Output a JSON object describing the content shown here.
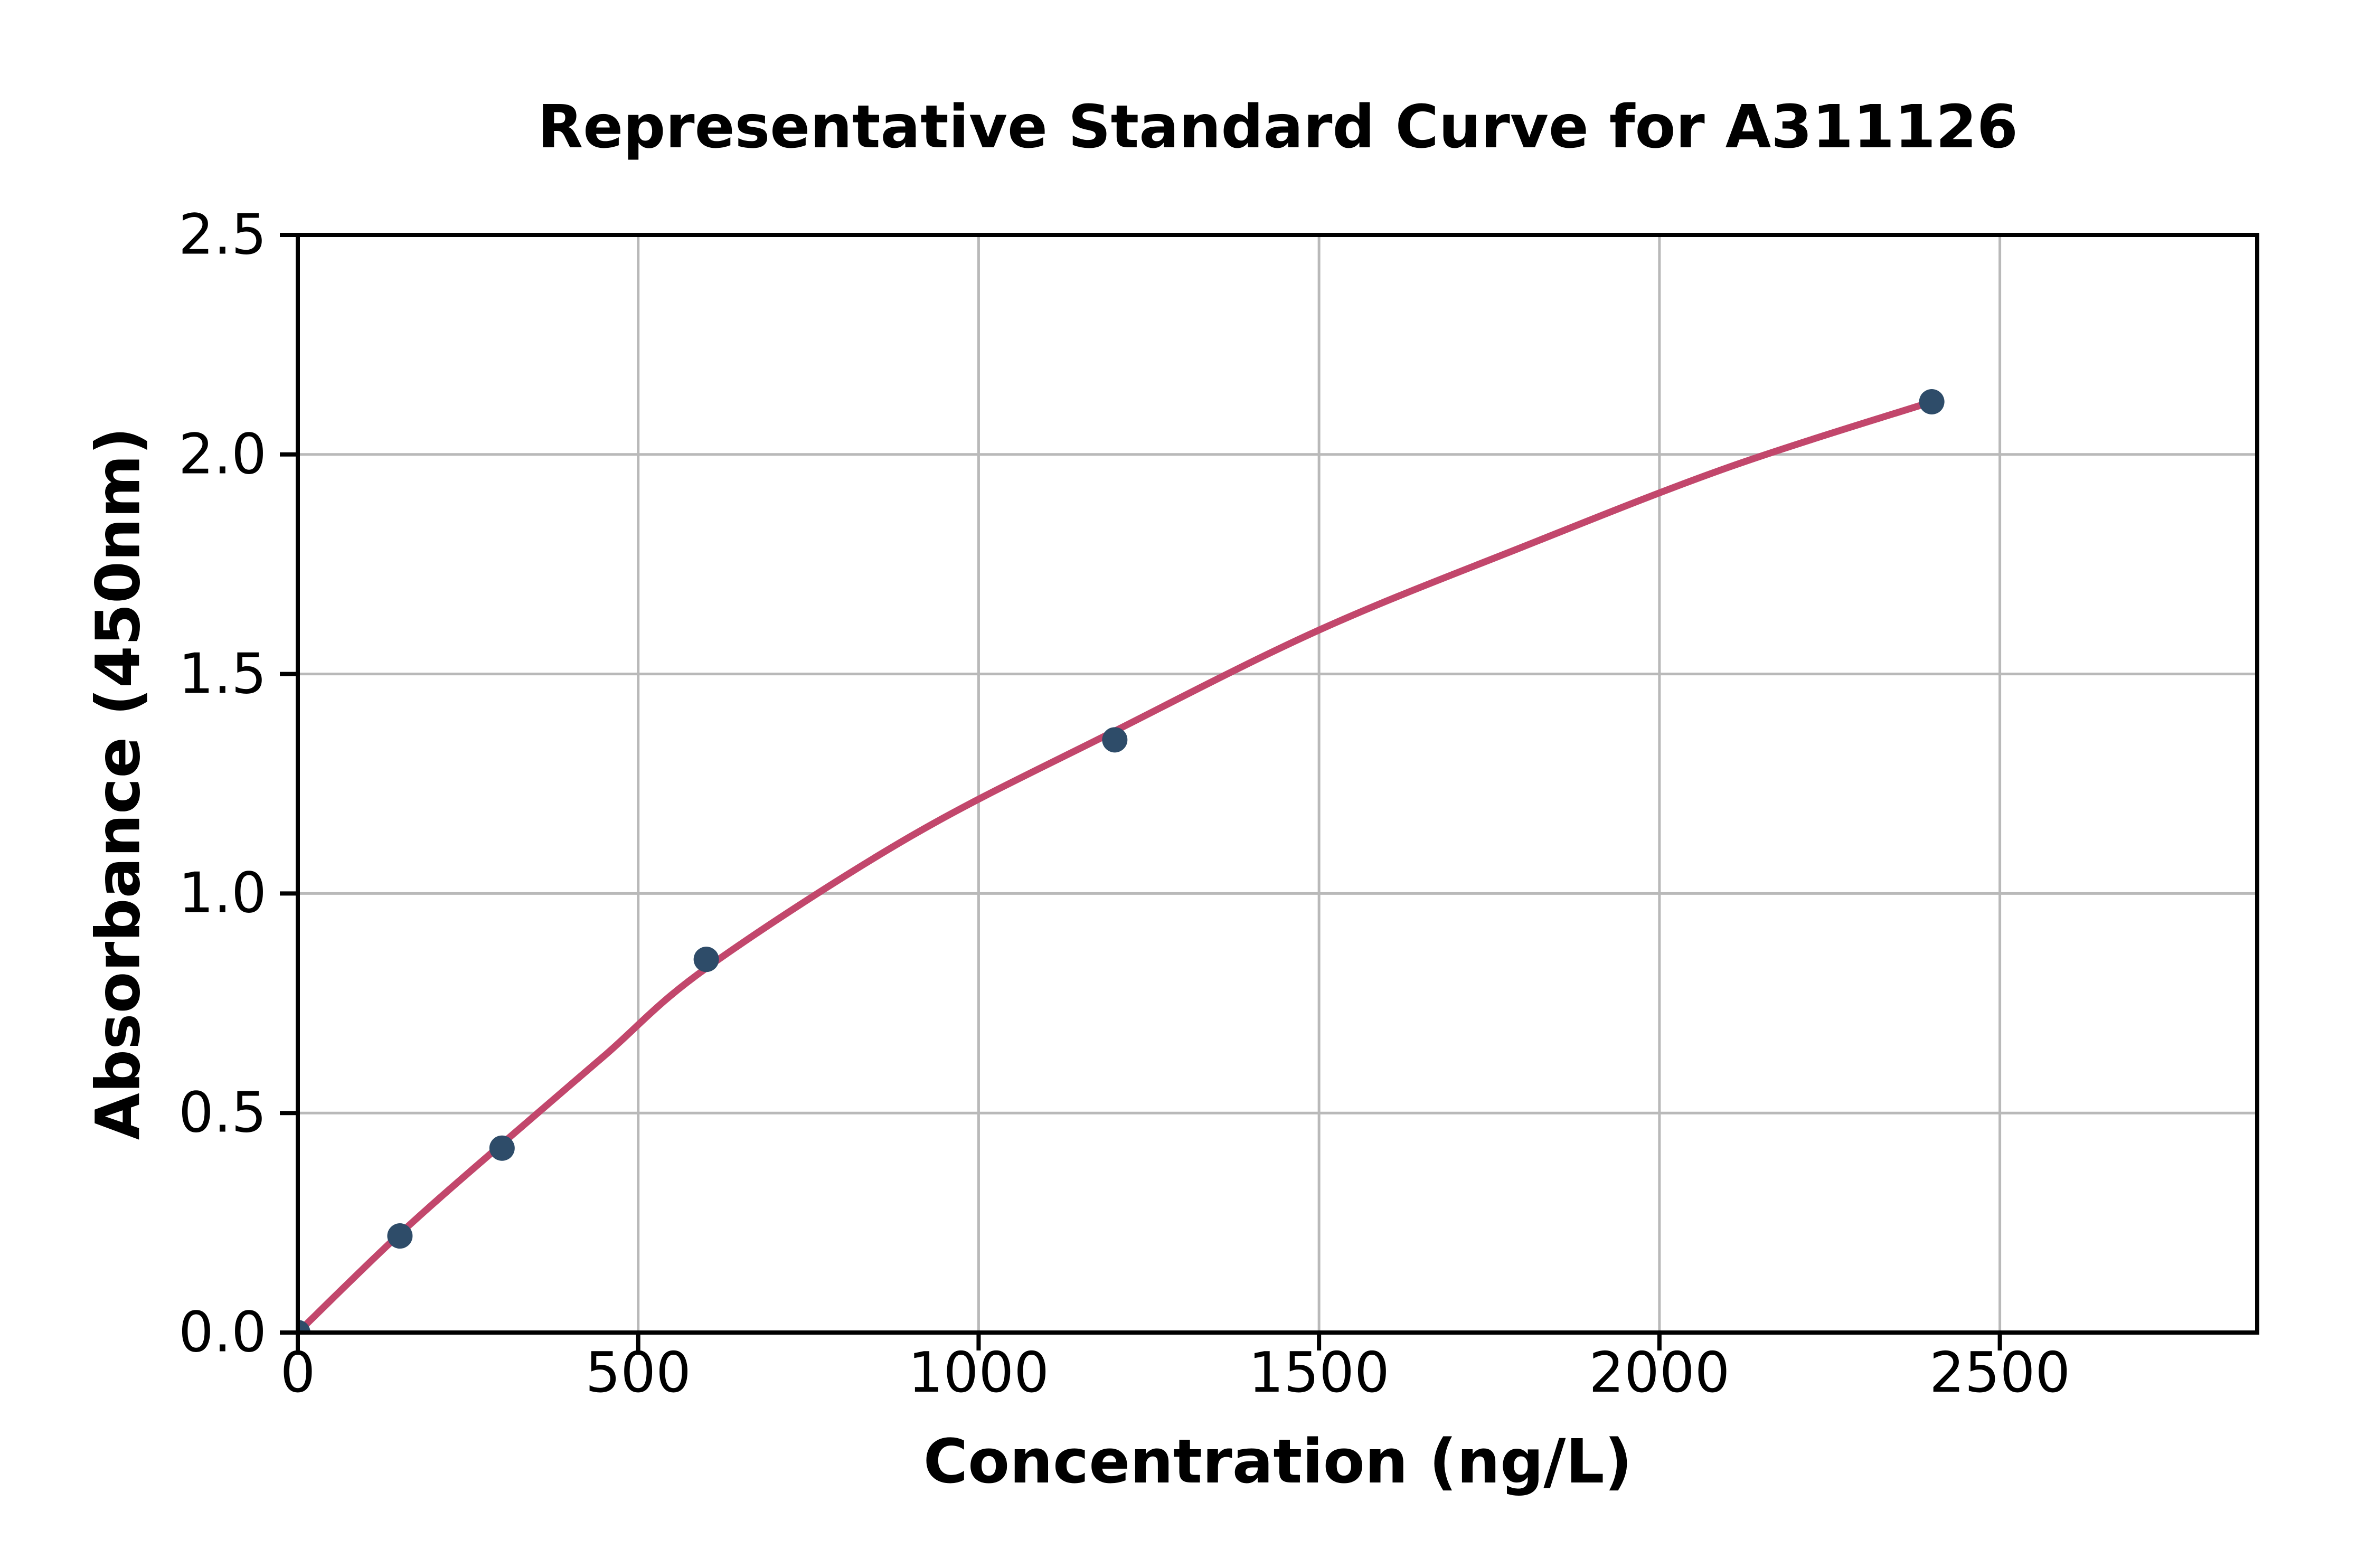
{
  "title": "Representative Standard Curve for A311126",
  "x_axis": {
    "label": "Concentration (ng/L)",
    "tick_labels": [
      "0",
      "500",
      "1000",
      "1500",
      "2000",
      "2500"
    ],
    "tick_values": [
      0,
      500,
      1000,
      1500,
      2000,
      2500
    ]
  },
  "y_axis": {
    "label": "Absorbance (450nm)",
    "tick_labels": [
      "0.0",
      "0.5",
      "1.0",
      "1.5",
      "2.0",
      "2.5"
    ],
    "tick_values": [
      0,
      0.5,
      1.0,
      1.5,
      2.0,
      2.5
    ]
  },
  "chart_data": {
    "type": "scatter",
    "title": "Representative Standard Curve for A311126",
    "xlabel": "Concentration (ng/L)",
    "ylabel": "Absorbance (450nm)",
    "x": [
      0,
      150,
      300,
      600,
      1200,
      2400
    ],
    "y": [
      0.0,
      0.22,
      0.42,
      0.85,
      1.35,
      2.12
    ],
    "fit_curve": {
      "x": [
        0,
        150,
        300,
        450,
        600,
        900,
        1200,
        1500,
        1800,
        2100,
        2400
      ],
      "y": [
        0.0,
        0.225,
        0.43,
        0.63,
        0.83,
        1.13,
        1.37,
        1.6,
        1.79,
        1.97,
        2.12
      ]
    },
    "xlim": [
      0,
      2878
    ],
    "ylim": [
      0,
      2.5
    ],
    "grid": true,
    "legend": "none",
    "marker_color": "#2e4c69",
    "line_color": "#c2476c",
    "grid_color": "#b9b9b9",
    "spine_color": "#000000"
  }
}
